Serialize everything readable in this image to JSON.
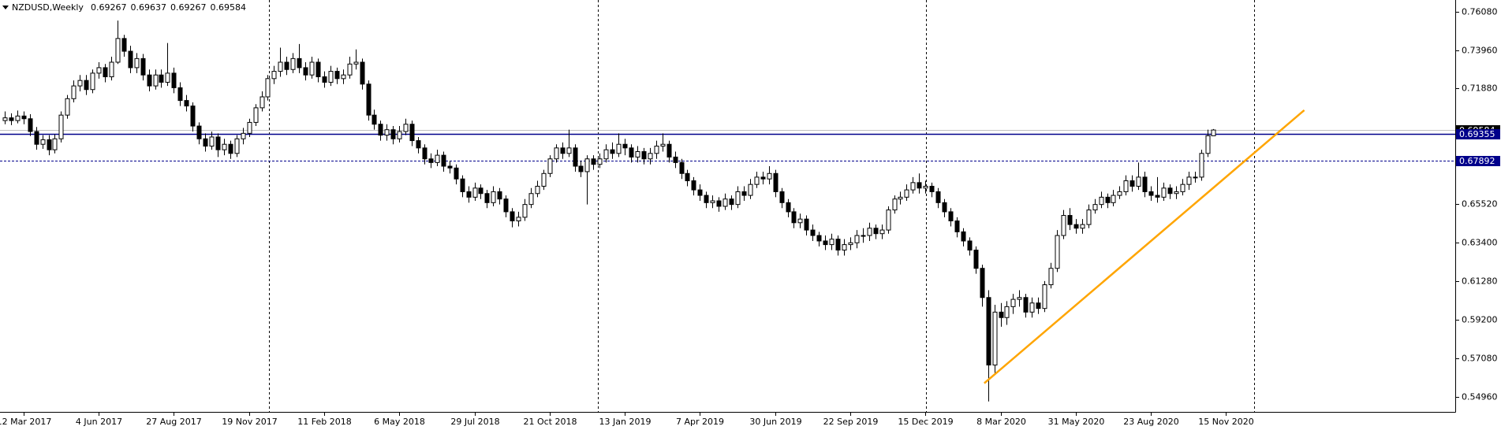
{
  "chart_data": {
    "type": "candlestick",
    "title": "NZDUSD,Weekly",
    "xlim": [
      -0.75,
      231.6
    ],
    "ylim": [
      0.5413,
      0.7671
    ],
    "grid": false,
    "up_color": "#ffffff",
    "down_color": "#000000",
    "edge_color": "#000000",
    "xticks": [
      {
        "value": 3,
        "label": "12 Mar 2017"
      },
      {
        "value": 15,
        "label": "4 Jun 2017"
      },
      {
        "value": 27,
        "label": "27 Aug 2017"
      },
      {
        "value": 39,
        "label": "19 Nov 2017"
      },
      {
        "value": 51,
        "label": "11 Feb 2018"
      },
      {
        "value": 63,
        "label": "6 May 2018"
      },
      {
        "value": 75,
        "label": "29 Jul 2018"
      },
      {
        "value": 87,
        "label": "21 Oct 2018"
      },
      {
        "value": 99,
        "label": "13 Jan 2019"
      },
      {
        "value": 111,
        "label": "7 Apr 2019"
      },
      {
        "value": 123,
        "label": "30 Jun 2019"
      },
      {
        "value": 135,
        "label": "22 Sep 2019"
      },
      {
        "value": 147,
        "label": "15 Dec 2019"
      },
      {
        "value": 159,
        "label": "8 Mar 2020"
      },
      {
        "value": 171,
        "label": "31 May 2020"
      },
      {
        "value": 183,
        "label": "23 Aug 2020"
      },
      {
        "value": 195,
        "label": "15 Nov 2020"
      }
    ],
    "yticks": [
      {
        "value": 0.7608,
        "label": "0.76080"
      },
      {
        "value": 0.7396,
        "label": "0.73960"
      },
      {
        "value": 0.7188,
        "label": "0.71880"
      },
      {
        "value": 0.6552,
        "label": "0.65520"
      },
      {
        "value": 0.634,
        "label": "0.63400"
      },
      {
        "value": 0.6128,
        "label": "0.61280"
      },
      {
        "value": 0.592,
        "label": "0.59200"
      },
      {
        "value": 0.5708,
        "label": "0.57080"
      },
      {
        "value": 0.5496,
        "label": "0.54960"
      }
    ],
    "open": [
      0.701,
      0.7025,
      0.701,
      0.7035,
      0.702,
      0.695,
      0.688,
      0.6905,
      0.685,
      0.691,
      0.704,
      0.713,
      0.72,
      0.723,
      0.718,
      0.727,
      0.73,
      0.725,
      0.733,
      0.746,
      0.739,
      0.73,
      0.735,
      0.726,
      0.72,
      0.726,
      0.722,
      0.727,
      0.719,
      0.712,
      0.709,
      0.698,
      0.691,
      0.687,
      0.692,
      0.685,
      0.688,
      0.683,
      0.691,
      0.694,
      0.7,
      0.708,
      0.714,
      0.724,
      0.728,
      0.733,
      0.729,
      0.735,
      0.73,
      0.726,
      0.733,
      0.725,
      0.722,
      0.728,
      0.724,
      0.726,
      0.732,
      0.733,
      0.721,
      0.704,
      0.699,
      0.693,
      0.696,
      0.691,
      0.695,
      0.699,
      0.69,
      0.686,
      0.68,
      0.678,
      0.682,
      0.676,
      0.675,
      0.669,
      0.662,
      0.659,
      0.664,
      0.661,
      0.656,
      0.662,
      0.658,
      0.651,
      0.646,
      0.648,
      0.655,
      0.661,
      0.665,
      0.672,
      0.68,
      0.686,
      0.683,
      0.686,
      0.676,
      0.673,
      0.68,
      0.677,
      0.68,
      0.685,
      0.683,
      0.688,
      0.686,
      0.681,
      0.684,
      0.68,
      0.683,
      0.687,
      0.688,
      0.681,
      0.678,
      0.672,
      0.668,
      0.663,
      0.66,
      0.656,
      0.657,
      0.654,
      0.658,
      0.655,
      0.662,
      0.66,
      0.666,
      0.67,
      0.669,
      0.672,
      0.662,
      0.656,
      0.651,
      0.645,
      0.647,
      0.641,
      0.638,
      0.635,
      0.633,
      0.636,
      0.63,
      0.633,
      0.634,
      0.638,
      0.638,
      0.642,
      0.639,
      0.641,
      0.652,
      0.658,
      0.659,
      0.663,
      0.667,
      0.664,
      0.665,
      0.662,
      0.656,
      0.651,
      0.646,
      0.64,
      0.635,
      0.63,
      0.62,
      0.604,
      0.567,
      0.596,
      0.593,
      0.599,
      0.603,
      0.604,
      0.596,
      0.601,
      0.598,
      0.611,
      0.62,
      0.638,
      0.649,
      0.644,
      0.642,
      0.644,
      0.652,
      0.655,
      0.659,
      0.656,
      0.66,
      0.662,
      0.668,
      0.665,
      0.67,
      0.662,
      0.66,
      0.659,
      0.664,
      0.661,
      0.662,
      0.666,
      0.67,
      0.67,
      0.683,
      0.69267
    ],
    "high": [
      0.706,
      0.705,
      0.7065,
      0.706,
      0.7045,
      0.6975,
      0.693,
      0.693,
      0.6935,
      0.706,
      0.715,
      0.723,
      0.726,
      0.726,
      0.729,
      0.733,
      0.732,
      0.736,
      0.7558,
      0.748,
      0.742,
      0.738,
      0.7375,
      0.729,
      0.729,
      0.729,
      0.7435,
      0.73,
      0.722,
      0.715,
      0.711,
      0.7,
      0.694,
      0.695,
      0.694,
      0.691,
      0.69,
      0.693,
      0.697,
      0.702,
      0.71,
      0.717,
      0.726,
      0.731,
      0.741,
      0.736,
      0.738,
      0.743,
      0.733,
      0.736,
      0.735,
      0.728,
      0.731,
      0.73,
      0.729,
      0.736,
      0.74,
      0.735,
      0.723,
      0.707,
      0.701,
      0.699,
      0.698,
      0.698,
      0.702,
      0.701,
      0.692,
      0.688,
      0.683,
      0.685,
      0.684,
      0.679,
      0.677,
      0.671,
      0.665,
      0.667,
      0.666,
      0.663,
      0.665,
      0.664,
      0.66,
      0.653,
      0.651,
      0.658,
      0.664,
      0.668,
      0.674,
      0.682,
      0.688,
      0.689,
      0.696,
      0.688,
      0.679,
      0.682,
      0.682,
      0.683,
      0.688,
      0.689,
      0.694,
      0.691,
      0.688,
      0.687,
      0.686,
      0.686,
      0.69,
      0.694,
      0.69,
      0.684,
      0.68,
      0.674,
      0.67,
      0.666,
      0.662,
      0.66,
      0.659,
      0.661,
      0.66,
      0.665,
      0.665,
      0.669,
      0.673,
      0.673,
      0.676,
      0.674,
      0.664,
      0.658,
      0.653,
      0.65,
      0.649,
      0.644,
      0.64,
      0.638,
      0.639,
      0.638,
      0.636,
      0.637,
      0.641,
      0.642,
      0.645,
      0.644,
      0.644,
      0.654,
      0.66,
      0.662,
      0.666,
      0.67,
      0.672,
      0.668,
      0.667,
      0.664,
      0.658,
      0.653,
      0.648,
      0.642,
      0.637,
      0.632,
      0.622,
      0.608,
      0.6,
      0.601,
      0.602,
      0.606,
      0.608,
      0.606,
      0.604,
      0.604,
      0.613,
      0.623,
      0.641,
      0.652,
      0.653,
      0.647,
      0.647,
      0.655,
      0.658,
      0.662,
      0.661,
      0.663,
      0.665,
      0.671,
      0.671,
      0.678,
      0.673,
      0.665,
      0.67,
      0.667,
      0.666,
      0.665,
      0.669,
      0.673,
      0.673,
      0.685,
      0.696,
      0.69637
    ],
    "low": [
      0.699,
      0.6985,
      0.6995,
      0.699,
      0.6925,
      0.685,
      0.6855,
      0.682,
      0.683,
      0.689,
      0.702,
      0.711,
      0.717,
      0.715,
      0.716,
      0.724,
      0.722,
      0.723,
      0.732,
      0.736,
      0.727,
      0.727,
      0.723,
      0.717,
      0.718,
      0.719,
      0.72,
      0.716,
      0.709,
      0.706,
      0.695,
      0.688,
      0.684,
      0.685,
      0.681,
      0.682,
      0.68,
      0.681,
      0.688,
      0.692,
      0.698,
      0.706,
      0.712,
      0.721,
      0.725,
      0.726,
      0.727,
      0.727,
      0.723,
      0.724,
      0.722,
      0.719,
      0.72,
      0.721,
      0.721,
      0.724,
      0.729,
      0.718,
      0.701,
      0.696,
      0.69,
      0.69,
      0.688,
      0.689,
      0.693,
      0.687,
      0.683,
      0.677,
      0.675,
      0.676,
      0.673,
      0.672,
      0.666,
      0.659,
      0.656,
      0.657,
      0.658,
      0.653,
      0.654,
      0.655,
      0.648,
      0.6425,
      0.643,
      0.646,
      0.653,
      0.659,
      0.663,
      0.67,
      0.678,
      0.68,
      0.681,
      0.673,
      0.67,
      0.655,
      0.674,
      0.675,
      0.678,
      0.68,
      0.681,
      0.682,
      0.678,
      0.678,
      0.677,
      0.677,
      0.68,
      0.684,
      0.678,
      0.675,
      0.669,
      0.665,
      0.66,
      0.657,
      0.653,
      0.653,
      0.651,
      0.652,
      0.652,
      0.653,
      0.657,
      0.658,
      0.664,
      0.666,
      0.666,
      0.659,
      0.653,
      0.648,
      0.642,
      0.642,
      0.638,
      0.635,
      0.632,
      0.63,
      0.63,
      0.627,
      0.627,
      0.63,
      0.631,
      0.634,
      0.635,
      0.636,
      0.636,
      0.639,
      0.65,
      0.655,
      0.657,
      0.661,
      0.661,
      0.661,
      0.659,
      0.653,
      0.648,
      0.643,
      0.637,
      0.632,
      0.627,
      0.617,
      0.599,
      0.547,
      0.562,
      0.588,
      0.589,
      0.595,
      0.599,
      0.593,
      0.593,
      0.595,
      0.596,
      0.609,
      0.618,
      0.636,
      0.641,
      0.639,
      0.639,
      0.642,
      0.65,
      0.653,
      0.653,
      0.654,
      0.658,
      0.66,
      0.662,
      0.663,
      0.659,
      0.657,
      0.656,
      0.657,
      0.658,
      0.658,
      0.66,
      0.663,
      0.667,
      0.668,
      0.681,
      0.69267
    ],
    "close": [
      0.7025,
      0.701,
      0.7035,
      0.702,
      0.695,
      0.688,
      0.6905,
      0.685,
      0.691,
      0.704,
      0.713,
      0.72,
      0.723,
      0.718,
      0.727,
      0.73,
      0.725,
      0.733,
      0.746,
      0.739,
      0.73,
      0.735,
      0.726,
      0.72,
      0.726,
      0.722,
      0.727,
      0.719,
      0.712,
      0.709,
      0.698,
      0.691,
      0.687,
      0.692,
      0.685,
      0.688,
      0.683,
      0.691,
      0.694,
      0.7,
      0.708,
      0.714,
      0.724,
      0.728,
      0.733,
      0.729,
      0.735,
      0.73,
      0.726,
      0.733,
      0.725,
      0.722,
      0.728,
      0.724,
      0.726,
      0.732,
      0.733,
      0.721,
      0.704,
      0.699,
      0.693,
      0.696,
      0.691,
      0.695,
      0.699,
      0.69,
      0.686,
      0.68,
      0.678,
      0.682,
      0.676,
      0.675,
      0.669,
      0.662,
      0.659,
      0.664,
      0.661,
      0.656,
      0.662,
      0.658,
      0.651,
      0.646,
      0.648,
      0.655,
      0.661,
      0.665,
      0.672,
      0.68,
      0.686,
      0.683,
      0.686,
      0.676,
      0.673,
      0.68,
      0.677,
      0.68,
      0.685,
      0.683,
      0.688,
      0.686,
      0.681,
      0.684,
      0.68,
      0.683,
      0.687,
      0.688,
      0.681,
      0.678,
      0.672,
      0.668,
      0.663,
      0.66,
      0.656,
      0.657,
      0.654,
      0.658,
      0.655,
      0.662,
      0.66,
      0.666,
      0.67,
      0.669,
      0.672,
      0.662,
      0.656,
      0.651,
      0.645,
      0.647,
      0.641,
      0.638,
      0.635,
      0.633,
      0.636,
      0.63,
      0.633,
      0.634,
      0.638,
      0.638,
      0.642,
      0.639,
      0.641,
      0.652,
      0.658,
      0.659,
      0.663,
      0.667,
      0.664,
      0.665,
      0.662,
      0.656,
      0.651,
      0.646,
      0.64,
      0.635,
      0.63,
      0.62,
      0.604,
      0.567,
      0.596,
      0.593,
      0.599,
      0.603,
      0.604,
      0.596,
      0.601,
      0.598,
      0.611,
      0.62,
      0.638,
      0.649,
      0.644,
      0.642,
      0.644,
      0.652,
      0.655,
      0.659,
      0.656,
      0.66,
      0.662,
      0.668,
      0.665,
      0.67,
      0.662,
      0.66,
      0.659,
      0.664,
      0.661,
      0.662,
      0.666,
      0.67,
      0.67,
      0.683,
      0.6927,
      0.69584
    ],
    "last_price_color": "#c0c0c0",
    "hlines": [
      {
        "value": 0.69355,
        "color": "#00008b",
        "dashed": false
      },
      {
        "value": 0.67892,
        "color": "#00008b",
        "dashed": true
      }
    ],
    "trendline": {
      "color": "#ffa500",
      "points": [
        {
          "x": 156.4,
          "y": 0.557
        },
        {
          "x": 207.5,
          "y": 0.7067
        }
      ]
    }
  }
}
